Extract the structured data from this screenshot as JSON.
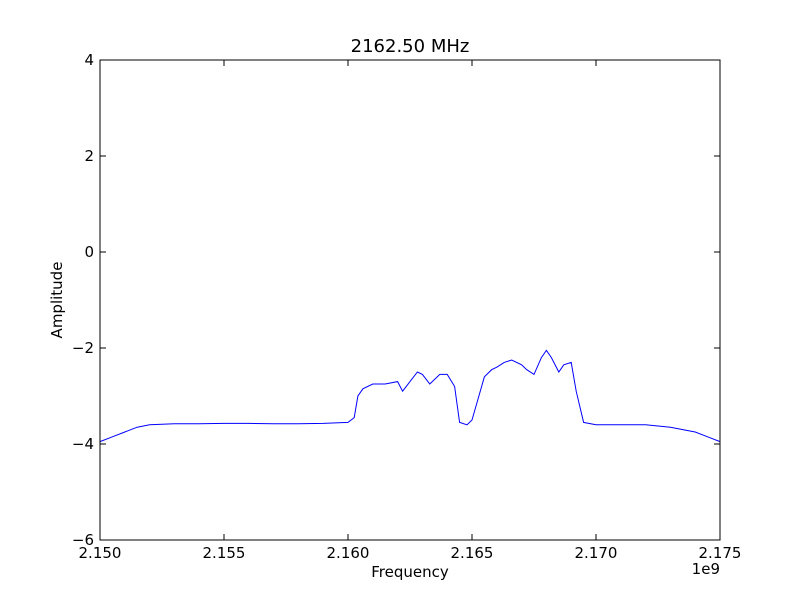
{
  "chart_data": {
    "type": "line",
    "title": "2162.50 MHz",
    "xlabel": "Frequency",
    "ylabel": "Amplitude",
    "x_offset_label": "1e9",
    "xlim": [
      2.15,
      2.175
    ],
    "ylim": [
      -6,
      4
    ],
    "xticks": [
      2.15,
      2.155,
      2.16,
      2.165,
      2.17,
      2.175
    ],
    "xtick_labels": [
      "2.150",
      "2.155",
      "2.160",
      "2.165",
      "2.170",
      "2.175"
    ],
    "yticks": [
      4,
      2,
      0,
      -2,
      -4,
      -6
    ],
    "ytick_labels": [
      "4",
      "2",
      "0",
      "−2",
      "−4",
      "−6"
    ],
    "grid": false,
    "series": [
      {
        "color": "#0000ff",
        "x": [
          2.15,
          2.1505,
          2.151,
          2.1515,
          2.152,
          2.153,
          2.154,
          2.155,
          2.156,
          2.157,
          2.158,
          2.159,
          2.16,
          2.16025,
          2.1604,
          2.1606,
          2.161,
          2.1615,
          2.162,
          2.1622,
          2.1625,
          2.1628,
          2.163,
          2.1633,
          2.1637,
          2.164,
          2.1643,
          2.1645,
          2.1648,
          2.165,
          2.1655,
          2.1658,
          2.166,
          2.1663,
          2.1666,
          2.167,
          2.1672,
          2.1675,
          2.1678,
          2.168,
          2.1682,
          2.1685,
          2.1687,
          2.169,
          2.1692,
          2.1695,
          2.17,
          2.171,
          2.172,
          2.173,
          2.174,
          2.1745,
          2.175
        ],
        "y": [
          -3.95,
          -3.85,
          -3.75,
          -3.65,
          -3.6,
          -3.58,
          -3.58,
          -3.57,
          -3.57,
          -3.58,
          -3.58,
          -3.57,
          -3.55,
          -3.45,
          -3.0,
          -2.85,
          -2.75,
          -2.75,
          -2.7,
          -2.9,
          -2.7,
          -2.5,
          -2.55,
          -2.75,
          -2.55,
          -2.55,
          -2.8,
          -3.55,
          -3.6,
          -3.5,
          -2.6,
          -2.45,
          -2.4,
          -2.3,
          -2.25,
          -2.35,
          -2.45,
          -2.55,
          -2.2,
          -2.05,
          -2.2,
          -2.5,
          -2.35,
          -2.3,
          -2.9,
          -3.55,
          -3.6,
          -3.6,
          -3.6,
          -3.65,
          -3.75,
          -3.85,
          -3.95
        ]
      }
    ]
  }
}
